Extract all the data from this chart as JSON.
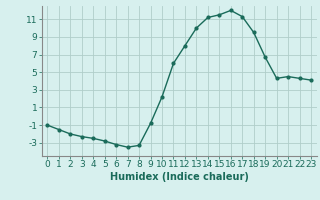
{
  "x": [
    0,
    1,
    2,
    3,
    4,
    5,
    6,
    7,
    8,
    9,
    10,
    11,
    12,
    13,
    14,
    15,
    16,
    17,
    18,
    19,
    20,
    21,
    22,
    23
  ],
  "y": [
    -1,
    -1.5,
    -2,
    -2.3,
    -2.5,
    -2.8,
    -3.2,
    -3.5,
    -3.3,
    -0.8,
    2.2,
    6.0,
    8.0,
    10.0,
    11.2,
    11.5,
    12.0,
    11.3,
    9.5,
    6.7,
    4.3,
    4.5,
    4.3,
    4.1
  ],
  "line_color": "#1a6b5a",
  "marker": "o",
  "marker_size": 2,
  "bg_color": "#d7f0ee",
  "grid_color": "#b0ceca",
  "xlabel": "Humidex (Indice chaleur)",
  "xlabel_fontsize": 7,
  "ylabel_ticks": [
    -3,
    -1,
    1,
    3,
    5,
    7,
    9,
    11
  ],
  "xlim": [
    -0.5,
    23.5
  ],
  "ylim": [
    -4.5,
    12.5
  ],
  "tick_fontsize": 6.5,
  "line_width": 1.0
}
